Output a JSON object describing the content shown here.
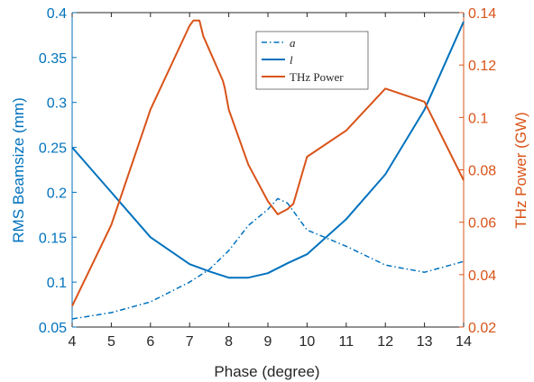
{
  "chart_data": {
    "type": "line",
    "xlabel": "Phase (degree)",
    "ylabel_left": "RMS Beamsize (mm)",
    "ylabel_right": "THz Power (GW)",
    "xlim": [
      4,
      14
    ],
    "ylim_left": [
      0.05,
      0.4
    ],
    "ylim_right": [
      0.02,
      0.14
    ],
    "x_ticks": [
      "4",
      "5",
      "6",
      "7",
      "8",
      "9",
      "10",
      "11",
      "12",
      "13",
      "14"
    ],
    "y_left_ticks": [
      "0.05",
      "0.1",
      "0.15",
      "0.2",
      "0.25",
      "0.3",
      "0.35",
      "0.4"
    ],
    "y_right_ticks": [
      "0.02",
      "0.04",
      "0.06",
      "0.08",
      "0.1",
      "0.12",
      "0.14"
    ],
    "grid": false,
    "legend_position": "top-center",
    "colors": {
      "left_axis": "#0072BD",
      "right_axis": "#D95319"
    },
    "series": [
      {
        "name": "a",
        "axis": "left",
        "style": "dash-dot",
        "color": "#0072BD",
        "x": [
          4,
          5,
          6,
          7,
          7.5,
          8,
          8.5,
          9,
          9.25,
          9.5,
          10,
          11,
          12,
          13,
          14
        ],
        "values": [
          0.059,
          0.066,
          0.078,
          0.1,
          0.114,
          0.135,
          0.163,
          0.181,
          0.193,
          0.188,
          0.158,
          0.14,
          0.119,
          0.111,
          0.123
        ]
      },
      {
        "name": "l",
        "axis": "left",
        "style": "solid",
        "color": "#0072BD",
        "x": [
          4,
          5,
          6,
          7,
          7.5,
          8,
          8.5,
          9,
          9.5,
          10,
          11,
          12,
          13,
          14
        ],
        "values": [
          0.25,
          0.2,
          0.15,
          0.12,
          0.112,
          0.105,
          0.105,
          0.11,
          0.121,
          0.131,
          0.17,
          0.22,
          0.292,
          0.39
        ]
      },
      {
        "name": "THz Power",
        "axis": "right",
        "style": "solid",
        "color": "#D95319",
        "x": [
          4,
          5,
          6,
          7,
          7.1,
          7.25,
          7.35,
          7.85,
          7.9,
          8,
          8.5,
          9,
          9.25,
          9.5,
          9.65,
          10,
          11,
          12,
          13,
          14
        ],
        "values": [
          0.028,
          0.059,
          0.103,
          0.135,
          0.137,
          0.137,
          0.131,
          0.114,
          0.111,
          0.103,
          0.082,
          0.068,
          0.063,
          0.065,
          0.067,
          0.085,
          0.095,
          0.111,
          0.106,
          0.076
        ]
      }
    ]
  }
}
